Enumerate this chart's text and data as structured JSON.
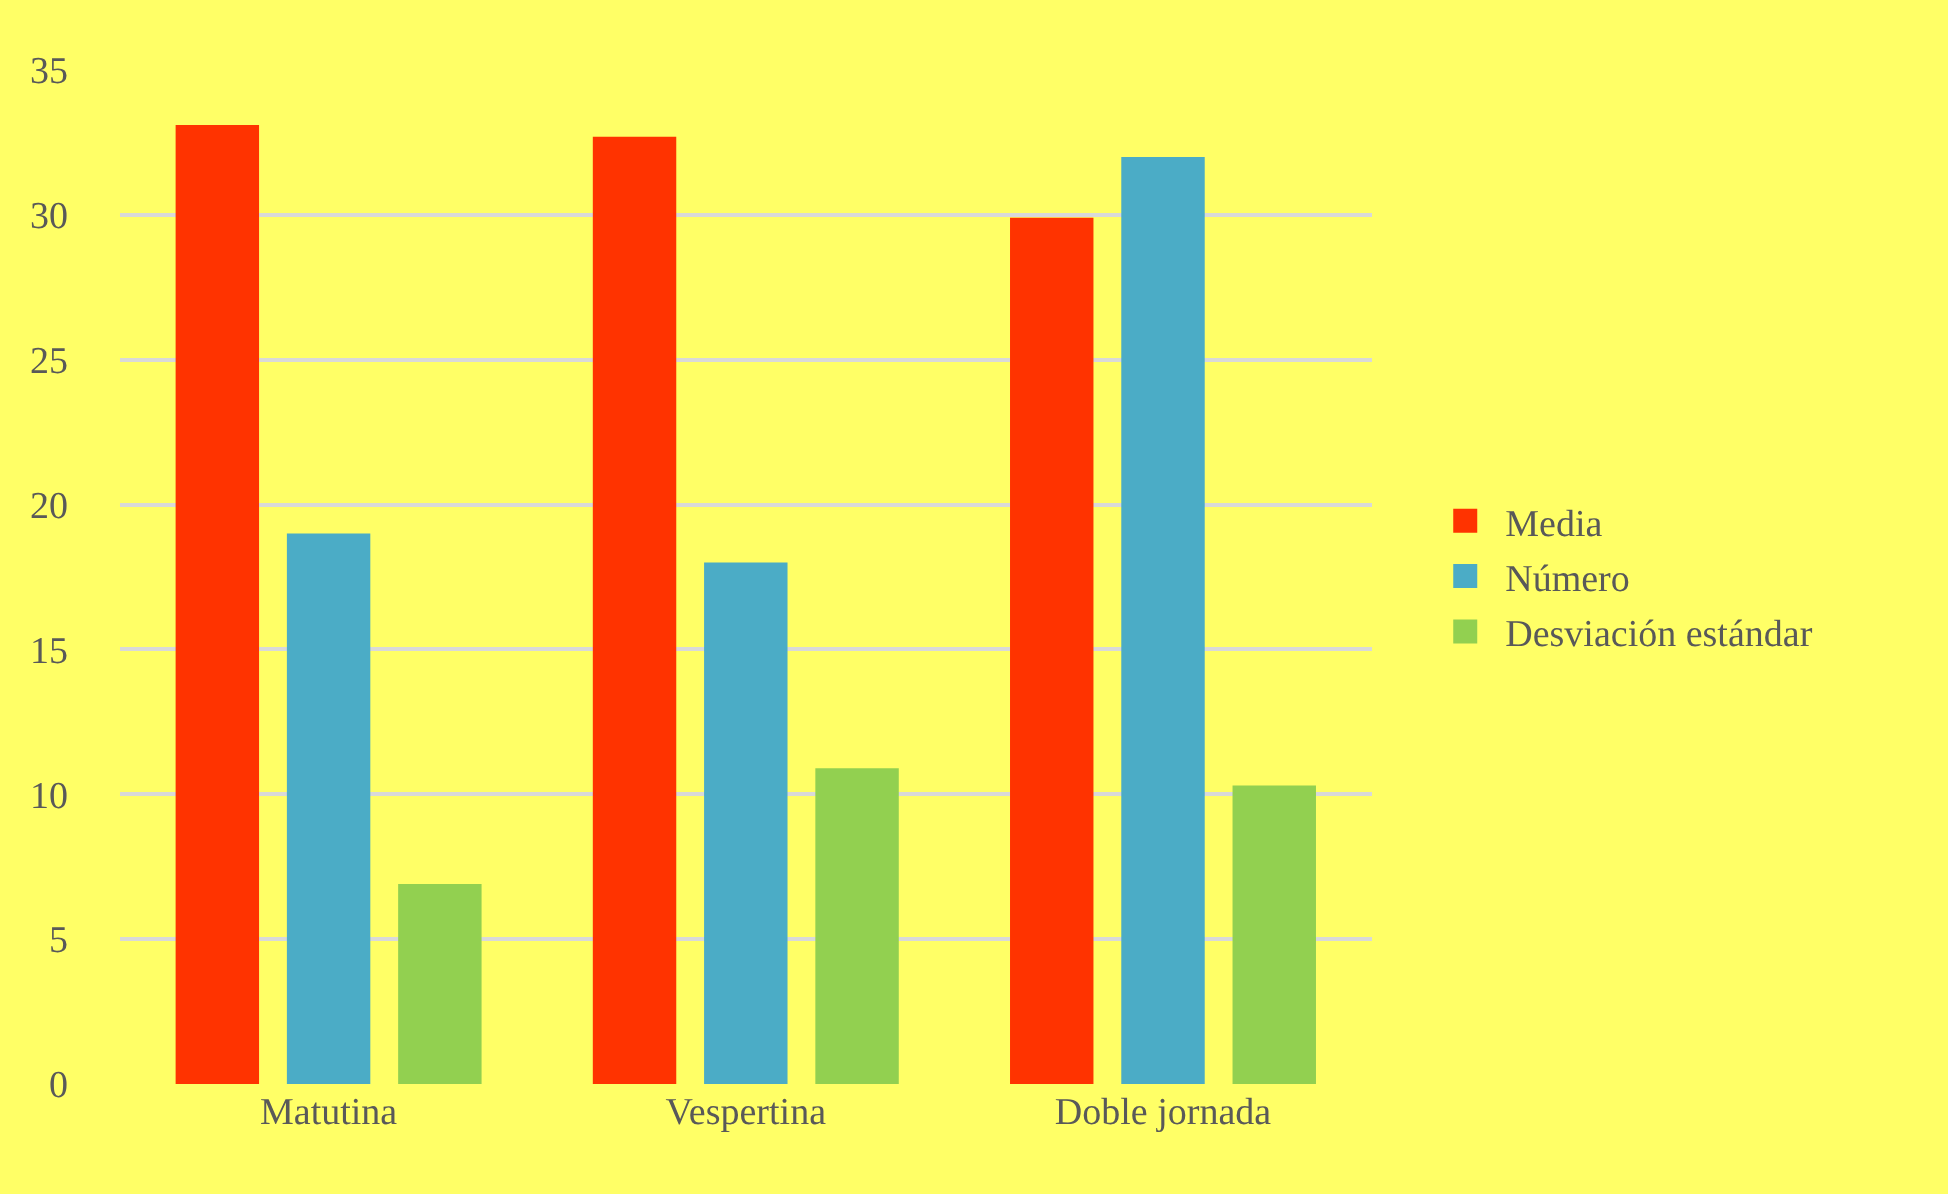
{
  "chart_data": {
    "type": "bar",
    "categories": [
      "Matutina",
      "Vespertina",
      "Doble jornada"
    ],
    "series": [
      {
        "name": "Media",
        "color": "#ff3300",
        "values": [
          33.1,
          32.7,
          29.9
        ]
      },
      {
        "name": "Número",
        "color": "#4bacc6",
        "values": [
          19,
          18,
          32
        ]
      },
      {
        "name": "Desviación estándar",
        "color": "#92d050",
        "values": [
          6.9,
          10.9,
          10.3
        ]
      }
    ],
    "ylim": [
      0,
      35
    ],
    "yticks": [
      0,
      5,
      10,
      15,
      20,
      25,
      30,
      35
    ],
    "grid": "y",
    "legend": "right"
  }
}
